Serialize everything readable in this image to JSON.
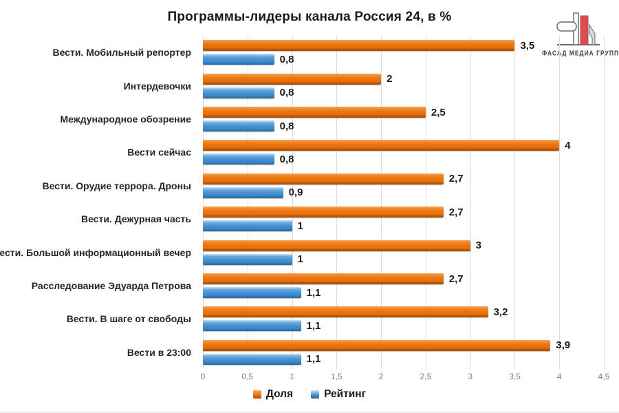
{
  "title": "Программы-лидеры канала Россия 24, в %",
  "logo": {
    "text": "ФАСАД МЕДИА ГРУПП",
    "red": "#e8474f",
    "outline": "#6b6b6b",
    "text_color": "#3f3f3f"
  },
  "colors": {
    "share_orange": "#ea750e",
    "rating_blue": "#4593d4",
    "gridline": "#dcdcdc",
    "tick_text": "#7f7f7f",
    "label_text": "#262626",
    "background": "#ffffff"
  },
  "chart_data": {
    "type": "bar",
    "orientation": "horizontal",
    "title": "Программы-лидеры канала Россия 24, в %",
    "categories": [
      "Вести. Мобильный репортер",
      "Интердевочки",
      "Международное обозрение",
      "Вести сейчас",
      "Вести. Орудие террора. Дроны",
      "Вести. Дежурная часть",
      "Вести. Большой информационный вечер",
      "Расследование Эдуарда Петрова",
      "Вести. В шаге от свободы",
      "Вести в 23:00"
    ],
    "series": [
      {
        "name": "Доля",
        "color": "#ea750e",
        "values": [
          3.5,
          2,
          2.5,
          4,
          2.7,
          2.7,
          3,
          2.7,
          3.2,
          3.9
        ],
        "labels": [
          "3,5",
          "2",
          "2,5",
          "4",
          "2,7",
          "2,7",
          "3",
          "2,7",
          "3,2",
          "3,9"
        ]
      },
      {
        "name": "Рейтинг",
        "color": "#4593d4",
        "values": [
          0.8,
          0.8,
          0.8,
          0.8,
          0.9,
          1,
          1,
          1.1,
          1.1,
          1.1
        ],
        "labels": [
          "0,8",
          "0,8",
          "0,8",
          "0,8",
          "0,9",
          "1",
          "1",
          "1,1",
          "1,1",
          "1,1"
        ]
      }
    ],
    "xlim": [
      0,
      4.5
    ],
    "xticks": [
      "0",
      "0,5",
      "1",
      "1,5",
      "2",
      "2,5",
      "3",
      "3,5",
      "4",
      "4,5"
    ],
    "grid": true,
    "legend_position": "bottom"
  }
}
